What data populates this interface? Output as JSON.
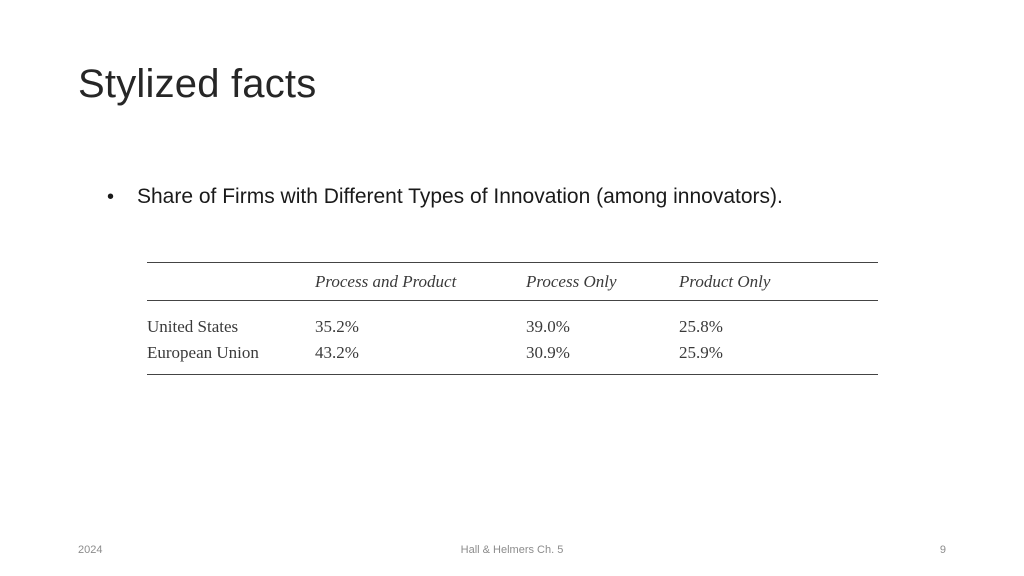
{
  "slide": {
    "title": "Stylized facts",
    "bullet": "Share of Firms with Different Types of Innovation (among innovators)."
  },
  "table": {
    "headers": [
      "",
      "Process and Product",
      "Process Only",
      "Product Only"
    ],
    "rows": [
      [
        "United States",
        "35.2%",
        "39.0%",
        "25.8%"
      ],
      [
        "European Union",
        "43.2%",
        "30.9%",
        "25.9%"
      ]
    ]
  },
  "footer": {
    "date": "2024",
    "center": "Hall & Helmers Ch. 5",
    "page": "9"
  }
}
